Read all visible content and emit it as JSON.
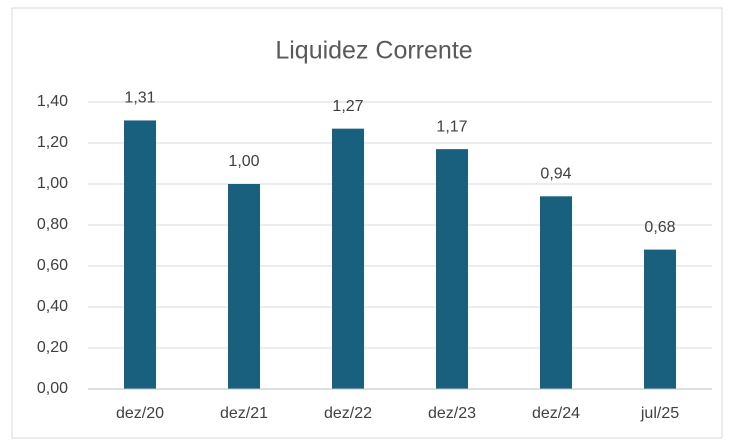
{
  "chart_data": {
    "type": "bar",
    "title": "Liquidez Corrente",
    "categories": [
      "dez/20",
      "dez/21",
      "dez/22",
      "dez/23",
      "dez/24",
      "jul/25"
    ],
    "values": [
      1.31,
      1.0,
      1.27,
      1.17,
      0.94,
      0.68
    ],
    "value_labels": [
      "1,31",
      "1,00",
      "1,27",
      "1,17",
      "0,94",
      "0,68"
    ],
    "color": "#195f7e",
    "ylim": [
      0,
      1.4
    ],
    "yticks": [
      {
        "value": 0,
        "label": "0,00"
      },
      {
        "value": 0.2,
        "label": "0,20"
      },
      {
        "value": 0.4,
        "label": "0,40"
      },
      {
        "value": 0.6,
        "label": "0,60"
      },
      {
        "value": 0.8,
        "label": "0,80"
      },
      {
        "value": 1.0,
        "label": "1,00"
      },
      {
        "value": 1.2,
        "label": "1,20"
      },
      {
        "value": 1.4,
        "label": "1,40"
      }
    ],
    "grid": true
  }
}
